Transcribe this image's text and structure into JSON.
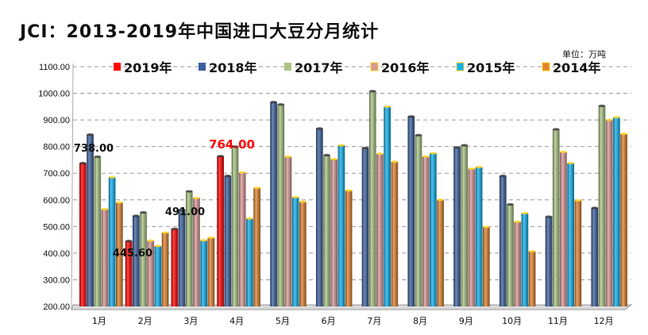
{
  "chart_data": {
    "type": "bar",
    "title": "JCI：2013-2019年中国进口大豆分月统计",
    "unit": "单位：万吨",
    "xlabel": "",
    "ylabel": "",
    "ylim": [
      200,
      1100
    ],
    "yticks": [
      "200.00",
      "300.00",
      "400.00",
      "500.00",
      "600.00",
      "700.00",
      "800.00",
      "900.00",
      "1000.00",
      "1100.00"
    ],
    "grid": true,
    "legend_position": "top",
    "categories": [
      "1月",
      "2月",
      "3月",
      "4月",
      "5月",
      "6月",
      "7月",
      "8月",
      "9月",
      "10月",
      "11月",
      "12月"
    ],
    "series": [
      {
        "name": "2019年",
        "color": "#ff0000",
        "values": [
          738,
          445.6,
          491,
          764,
          null,
          null,
          null,
          null,
          null,
          null,
          null,
          null
        ]
      },
      {
        "name": "2018年",
        "color": "#3a5f9c",
        "values": [
          845,
          540,
          563,
          690,
          967,
          868,
          795,
          913,
          797,
          690,
          537,
          570
        ]
      },
      {
        "name": "2017年",
        "color": "#a9c483",
        "values": [
          762,
          553,
          632,
          800,
          958,
          768,
          1008,
          843,
          805,
          583,
          865,
          953
        ]
      },
      {
        "name": "2016年",
        "color": "#d99795",
        "values": [
          565,
          447,
          607,
          703,
          762,
          753,
          773,
          763,
          717,
          518,
          780,
          900
        ]
      },
      {
        "name": "2015年",
        "color": "#0fb0ee",
        "values": [
          685,
          427,
          448,
          530,
          610,
          805,
          950,
          775,
          723,
          550,
          738,
          910
        ]
      },
      {
        "name": "2014年",
        "color": "#e0822e",
        "values": [
          590,
          477,
          458,
          645,
          593,
          635,
          743,
          600,
          498,
          407,
          598,
          848
        ]
      }
    ],
    "data_labels": [
      {
        "text": "738.00",
        "color": "#111111"
      },
      {
        "text": "445.60",
        "color": "#111111"
      },
      {
        "text": "491.00",
        "color": "#111111"
      },
      {
        "text": "764.00",
        "color": "#ff0000"
      }
    ]
  }
}
